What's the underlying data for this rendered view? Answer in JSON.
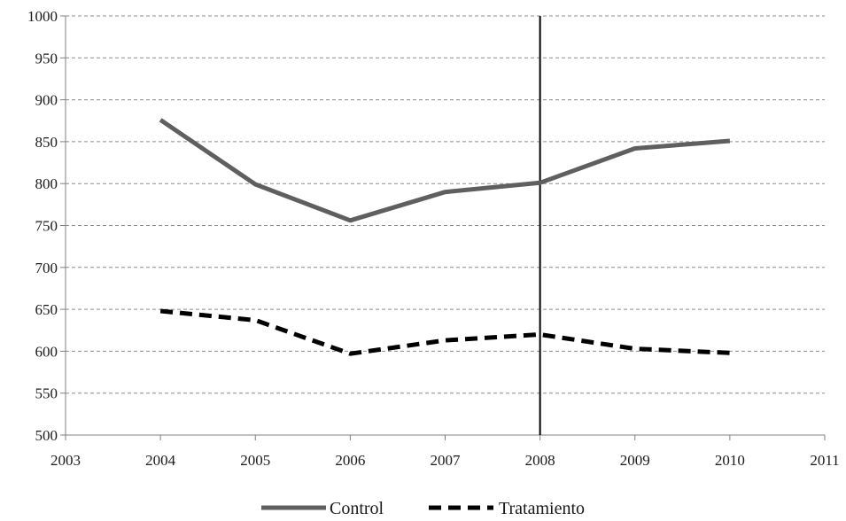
{
  "chart_data": {
    "type": "line",
    "x_ticks": [
      2003,
      2004,
      2005,
      2006,
      2007,
      2008,
      2009,
      2010,
      2011
    ],
    "y_ticks": [
      500,
      550,
      600,
      650,
      700,
      750,
      800,
      850,
      900,
      950,
      1000
    ],
    "xlim": [
      2003,
      2011
    ],
    "ylim": [
      500,
      1000
    ],
    "grid": "horizontal-dashed",
    "vertical_marker_x": 2008,
    "legend_position": "bottom",
    "series": [
      {
        "name": "Control",
        "style": "solid",
        "color": "#5f5f5f",
        "x": [
          2004,
          2005,
          2006,
          2007,
          2008,
          2009,
          2010
        ],
        "y": [
          876,
          799,
          756,
          790,
          801,
          842,
          851
        ]
      },
      {
        "name": "Tratamiento",
        "style": "dashed",
        "color": "#000000",
        "x": [
          2004,
          2005,
          2006,
          2007,
          2008,
          2009,
          2010
        ],
        "y": [
          648,
          637,
          597,
          613,
          620,
          603,
          598
        ]
      }
    ]
  }
}
